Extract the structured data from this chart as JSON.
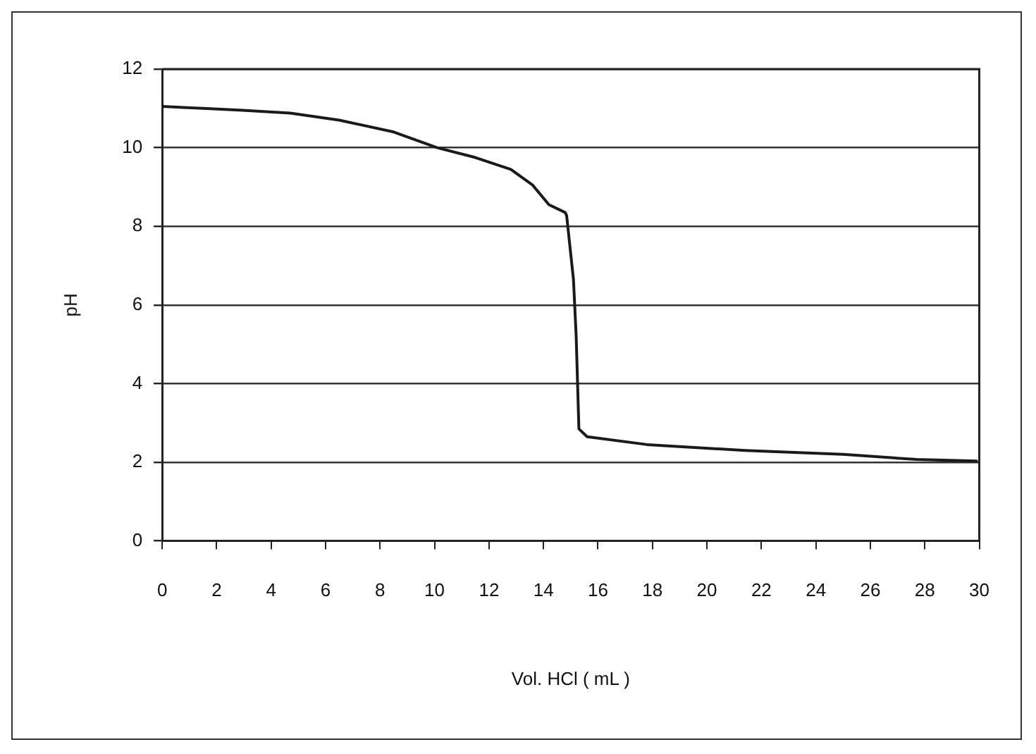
{
  "chart_data": {
    "type": "line",
    "xlabel": "Vol. HCl ( mL )",
    "ylabel": "pH",
    "series": [
      {
        "color": "#1a1a1a",
        "x": [
          0,
          1.5,
          2.95,
          4.7,
          6.5,
          8.5,
          10.1,
          11.5,
          12.8,
          13.6,
          14.2,
          14.8,
          14.85,
          15.1,
          15.2,
          15.3,
          15.6,
          17.8,
          21.4,
          25.0,
          27.7,
          29.9
        ],
        "values": [
          11.05,
          11.0,
          10.95,
          10.88,
          10.7,
          10.4,
          10.0,
          9.75,
          9.45,
          9.05,
          8.55,
          8.35,
          8.27,
          6.65,
          5.2,
          2.85,
          2.65,
          2.45,
          2.3,
          2.2,
          2.07,
          2.03
        ]
      }
    ],
    "xlim": [
      0,
      30
    ],
    "xticks": [
      0,
      2,
      4,
      6,
      8,
      10,
      12,
      14,
      16,
      18,
      20,
      22,
      24,
      26,
      28,
      30
    ],
    "ylim": [
      0,
      12
    ],
    "yticks": [
      0,
      2,
      4,
      6,
      8,
      10,
      12
    ],
    "grid": "y",
    "legend": false,
    "marker": "none",
    "line_style": "solid"
  }
}
